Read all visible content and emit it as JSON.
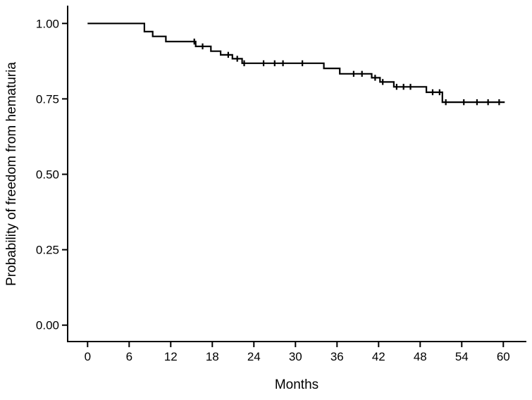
{
  "figure": {
    "background_color": "#ffffff"
  },
  "chart_data": {
    "type": "line",
    "chart_style": "kaplan-meier-step-curve",
    "title": "",
    "xlabel": "Months",
    "ylabel": "Probability of freedom from hematuria",
    "xlim": [
      0,
      60
    ],
    "ylim": [
      0.0,
      1.0
    ],
    "grid": false,
    "legend_position": "none",
    "line_color": "#000000",
    "axis_color": "#000000",
    "text_color": "#000000",
    "x_tick_values": [
      0,
      6,
      12,
      18,
      24,
      30,
      36,
      42,
      48,
      54,
      60
    ],
    "x_tick_labels": [
      "0",
      "6",
      "12",
      "18",
      "24",
      "30",
      "36",
      "42",
      "48",
      "54",
      "60"
    ],
    "y_tick_values": [
      1.0,
      0.75,
      0.5,
      0.25,
      0.0
    ],
    "y_tick_labels": [
      "1.00",
      "0.75",
      "0.50",
      "0.25",
      "0.00"
    ],
    "series": [
      {
        "steps": [
          [
            0,
            1.0
          ],
          [
            8.2,
            0.973
          ],
          [
            9.4,
            0.957
          ],
          [
            11.3,
            0.94
          ],
          [
            15.6,
            0.924
          ],
          [
            17.8,
            0.908
          ],
          [
            19.2,
            0.896
          ],
          [
            20.9,
            0.883
          ],
          [
            22.3,
            0.868
          ],
          [
            34.1,
            0.851
          ],
          [
            36.4,
            0.833
          ],
          [
            41.0,
            0.82
          ],
          [
            42.2,
            0.806
          ],
          [
            44.2,
            0.79
          ],
          [
            48.9,
            0.772
          ],
          [
            51.2,
            0.739
          ]
        ],
        "end_time": 60.2,
        "censor_times": [
          15.4,
          16.6,
          20.3,
          21.6,
          22.6,
          25.4,
          27.0,
          28.2,
          31.0,
          38.4,
          39.6,
          41.5,
          42.6,
          44.6,
          45.6,
          46.6,
          49.8,
          50.8,
          51.7,
          54.3,
          56.2,
          57.8,
          59.4
        ]
      }
    ]
  }
}
